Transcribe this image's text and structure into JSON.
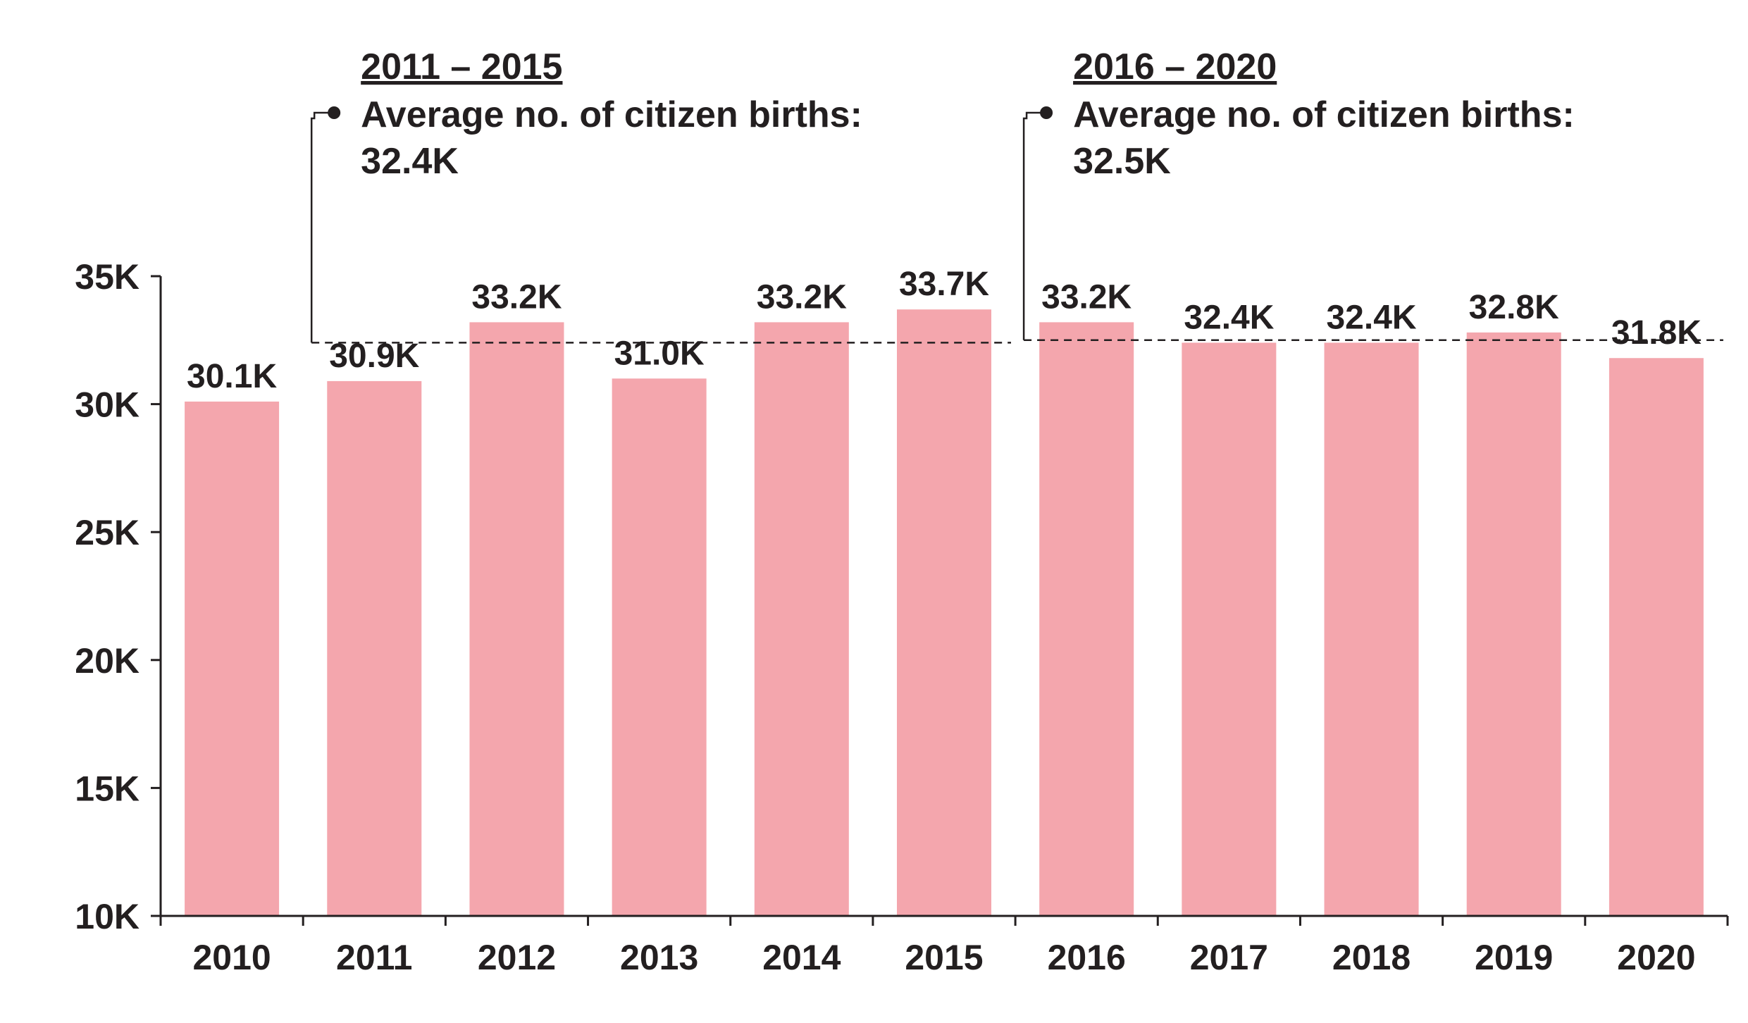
{
  "chart_data": {
    "type": "bar",
    "categories": [
      "2010",
      "2011",
      "2012",
      "2013",
      "2014",
      "2015",
      "2016",
      "2017",
      "2018",
      "2019",
      "2020"
    ],
    "values": [
      30.1,
      30.9,
      33.2,
      31.0,
      33.2,
      33.7,
      33.2,
      32.4,
      32.4,
      32.8,
      31.8
    ],
    "data_labels": [
      "30.1K",
      "30.9K",
      "33.2K",
      "31.0K",
      "33.2K",
      "33.7K",
      "33.2K",
      "32.4K",
      "32.4K",
      "32.8K",
      "31.8K"
    ],
    "y_ticks": [
      10,
      15,
      20,
      25,
      30,
      35
    ],
    "y_tick_labels": [
      "10K",
      "15K",
      "20K",
      "25K",
      "30K",
      "35K"
    ],
    "ylim": [
      10,
      35
    ],
    "grid": false,
    "bar_color": "#f4a6ad",
    "text_color": "#231f20",
    "annotations": [
      {
        "period": "2011 – 2015",
        "text": "Average no. of citizen births:",
        "value_label": "32.4K",
        "value": 32.4,
        "from_category": "2011",
        "to_category": "2015"
      },
      {
        "period": "2016 – 2020",
        "text": "Average no. of citizen births:",
        "value_label": "32.5K",
        "value": 32.5,
        "from_category": "2016",
        "to_category": "2020"
      }
    ]
  }
}
